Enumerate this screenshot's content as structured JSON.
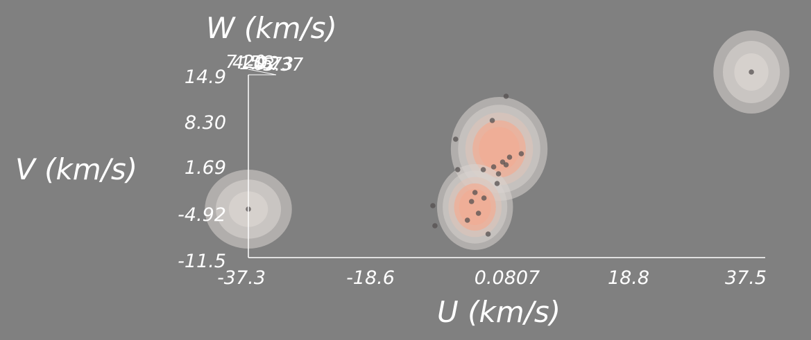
{
  "chart_data": {
    "type": "scatter",
    "title": "",
    "xlabel": "U (km/s)",
    "ylabel": "V (km/s)",
    "zlabel": "W (km/s)",
    "x_ticks": [
      "-37.3",
      "-18.6",
      "0.0807",
      "18.8",
      "37.5"
    ],
    "y_ticks": [
      "-11.5",
      "-4.92",
      "1.69",
      "8.30",
      "14.9"
    ],
    "z_ticks": [
      "7.20",
      "4.56",
      "1.92",
      "-0.73",
      "-3.37"
    ],
    "xlim": [
      -37.3,
      37.5
    ],
    "ylim": [
      -11.5,
      14.9
    ],
    "background_color": "#808080",
    "axis_color": "#ffffff",
    "density_colors": [
      "#d9d4d0",
      "#e0c4b8",
      "#f0ad95"
    ],
    "points": [
      {
        "x": -37.3,
        "y": -4.5
      },
      {
        "x": 35.5,
        "y": 15.3
      },
      {
        "x": 0.0,
        "y": 11.8
      },
      {
        "x": -2.0,
        "y": 8.3
      },
      {
        "x": -7.3,
        "y": 5.6
      },
      {
        "x": -7.0,
        "y": 1.2
      },
      {
        "x": -10.6,
        "y": -4.0
      },
      {
        "x": -10.3,
        "y": -6.9
      },
      {
        "x": -2.6,
        "y": -8.1
      },
      {
        "x": 2.2,
        "y": 3.5
      },
      {
        "x": 0.5,
        "y": 3.0
      },
      {
        "x": -0.5,
        "y": 2.3
      },
      {
        "x": -1.8,
        "y": 1.6
      },
      {
        "x": -3.3,
        "y": 1.2
      },
      {
        "x": -1.1,
        "y": 0.6
      },
      {
        "x": 0.0,
        "y": 1.9
      },
      {
        "x": -1.3,
        "y": -0.8
      },
      {
        "x": -4.5,
        "y": -2.1
      },
      {
        "x": -3.2,
        "y": -2.9
      },
      {
        "x": -4.0,
        "y": -5.1
      },
      {
        "x": -5.6,
        "y": -6.1
      },
      {
        "x": -5.0,
        "y": -3.4
      }
    ],
    "clusters": [
      {
        "center": [
          -37.3,
          -4.5
        ],
        "radius": [
          6.3,
          5.7
        ]
      },
      {
        "center": [
          35.5,
          15.3
        ],
        "radius": [
          5.5,
          6.0
        ]
      },
      {
        "center": [
          -1.0,
          4.2
        ],
        "radius": [
          7.0,
          7.5
        ]
      },
      {
        "center": [
          -4.5,
          -4.2
        ],
        "radius": [
          5.5,
          6.2
        ]
      }
    ]
  }
}
